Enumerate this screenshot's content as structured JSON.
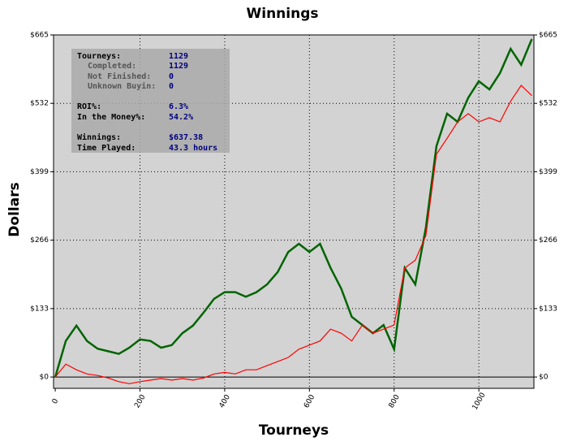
{
  "chart_data": {
    "type": "line",
    "title": "Winnings",
    "x_label": "Tourneys",
    "y_label": "Dollars",
    "x": [
      0,
      25,
      50,
      75,
      100,
      125,
      150,
      175,
      200,
      225,
      250,
      275,
      300,
      325,
      350,
      375,
      400,
      425,
      450,
      475,
      500,
      525,
      550,
      575,
      600,
      625,
      650,
      675,
      700,
      725,
      750,
      775,
      800,
      825,
      850,
      875,
      900,
      925,
      950,
      975,
      1000,
      1025,
      1050,
      1075,
      1100,
      1125
    ],
    "series": [
      {
        "color": "#006400",
        "values": [
          0,
          70,
          100,
          70,
          55,
          50,
          45,
          57,
          73,
          70,
          57,
          62,
          85,
          100,
          125,
          152,
          165,
          165,
          156,
          165,
          180,
          204,
          243,
          259,
          243,
          259,
          212,
          172,
          117,
          101,
          85,
          101,
          54,
          212,
          180,
          291,
          449,
          512,
          496,
          543,
          575,
          559,
          591,
          638,
          607,
          657
        ]
      },
      {
        "color": "#ff0000",
        "values": [
          0,
          25,
          14,
          6,
          3,
          -2,
          -9,
          -13,
          -9,
          -6,
          -3,
          -6,
          -3,
          -6,
          -2,
          6,
          9,
          6,
          14,
          14,
          22,
          30,
          38,
          54,
          62,
          70,
          93,
          85,
          70,
          101,
          85,
          93,
          101,
          212,
          227,
          275,
          433,
          464,
          496,
          512,
          496,
          504,
          496,
          536,
          567,
          547
        ]
      }
    ],
    "xlim": [
      -4,
      1130
    ],
    "ylim": [
      -22,
      665
    ],
    "xticks": [
      0,
      200,
      400,
      600,
      800,
      1000
    ],
    "yticks": [
      {
        "value": 0,
        "label": "$0"
      },
      {
        "value": 133,
        "label": "$133"
      },
      {
        "value": 266,
        "label": "$266"
      },
      {
        "value": 399,
        "label": "$399"
      },
      {
        "value": 532,
        "label": "$532"
      },
      {
        "value": 665,
        "label": "$665"
      }
    ],
    "grid": true,
    "stats": [
      {
        "label": "Tourneys:",
        "value": "1129"
      },
      {
        "label": "Completed:",
        "value": "1129"
      },
      {
        "label": "Not Finished:",
        "value": "0"
      },
      {
        "label": "Unknown Buyin:",
        "value": "0"
      },
      {
        "label": "ROI%:",
        "value": "6.3%"
      },
      {
        "label": "In the Money%:",
        "value": "54.2%"
      },
      {
        "label": "Winnings:",
        "value": "$637.38"
      },
      {
        "label": "Time Played:",
        "value": "43.3 hours"
      }
    ]
  }
}
